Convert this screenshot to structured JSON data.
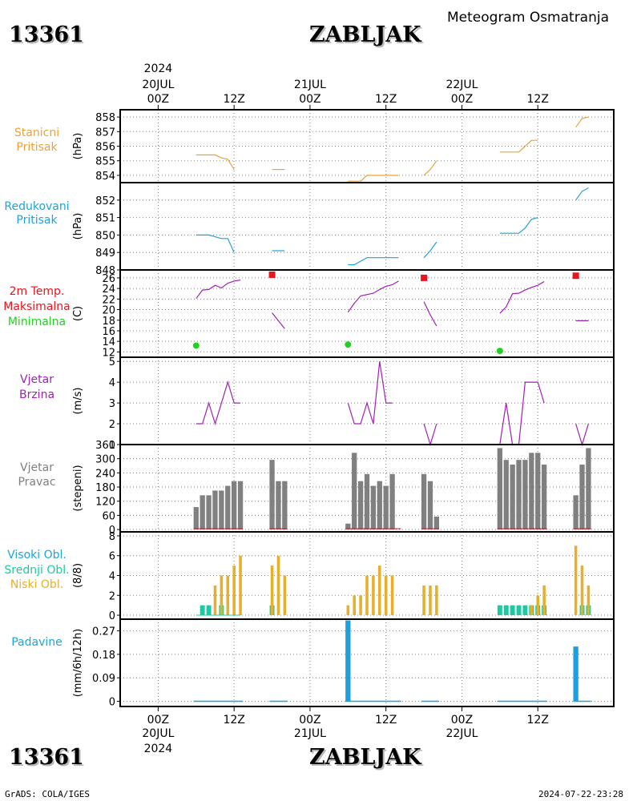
{
  "header": {
    "station_id": "13361",
    "station_name": "ZABLJAK",
    "product_title": "Meteogram Osmatranja"
  },
  "footer": {
    "station_id": "13361",
    "station_name": "ZABLJAK",
    "credit": "GrADS: COLA/IGES",
    "timestamp": "2024-07-22-23:28"
  },
  "time_axis": {
    "top": {
      "ticks": [
        "00Z",
        "12Z",
        "00Z",
        "12Z",
        "00Z",
        "12Z"
      ],
      "dates": [
        "20JUL",
        "21JUL",
        "22JUL"
      ],
      "year": "2024"
    },
    "bottom": {
      "ticks": [
        "00Z",
        "12Z",
        "00Z",
        "12Z",
        "00Z",
        "12Z"
      ],
      "dates": [
        "20JUL",
        "21JUL",
        "22JUL"
      ],
      "year": "2024"
    }
  },
  "colors": {
    "orange": "#e8a33a",
    "blue": "#1fa3d8",
    "red": "#e8141e",
    "green": "#1ed21e",
    "purple": "#a020b4",
    "gray": "#808080",
    "teal": "#1ec8a0",
    "cloud_orange": "#e6af2d",
    "rain_blue": "#1ea0dc"
  },
  "chart_data": [
    {
      "type": "line",
      "panel_label": [
        "Stanicni",
        "Pritisak"
      ],
      "ylabel": "(hPa)",
      "unit_x": "hours from 20JUL 00Z",
      "ylim": [
        853.5,
        858.5
      ],
      "y_ticks": [
        854,
        855,
        856,
        857,
        858
      ],
      "color": "orange",
      "segments": [
        [
          [
            6,
            855.4
          ],
          [
            9,
            855.4
          ],
          [
            10,
            855.2
          ],
          [
            11,
            855.1
          ],
          [
            12,
            854.4
          ]
        ],
        [
          [
            18,
            854.4
          ],
          [
            20,
            854.4
          ]
        ],
        [
          [
            30,
            853.6
          ],
          [
            32,
            853.6
          ],
          [
            33,
            854.0
          ],
          [
            38,
            854.0
          ]
        ],
        [
          [
            42,
            854.0
          ],
          [
            43,
            854.4
          ],
          [
            44,
            855.0
          ]
        ],
        [
          [
            54,
            855.6
          ],
          [
            57,
            855.6
          ],
          [
            58,
            856.0
          ],
          [
            59,
            856.4
          ],
          [
            60,
            856.4
          ]
        ],
        [
          [
            66,
            857.3
          ],
          [
            67,
            857.9
          ],
          [
            68,
            858.0
          ]
        ]
      ]
    },
    {
      "type": "line",
      "panel_label": [
        "Redukovani",
        "Pritisak"
      ],
      "ylabel": "(hPa)",
      "ylim": [
        848.0,
        853.0
      ],
      "y_ticks": [
        848,
        849,
        850,
        851,
        852
      ],
      "color": "blue",
      "segments": [
        [
          [
            6,
            850.0
          ],
          [
            8,
            850.0
          ],
          [
            9,
            849.9
          ],
          [
            10,
            849.8
          ],
          [
            11,
            849.8
          ],
          [
            12,
            849.0
          ]
        ],
        [
          [
            18,
            849.1
          ],
          [
            20,
            849.1
          ]
        ],
        [
          [
            30,
            848.3
          ],
          [
            31,
            848.3
          ],
          [
            32,
            848.5
          ],
          [
            33,
            848.7
          ],
          [
            38,
            848.7
          ]
        ],
        [
          [
            42,
            848.7
          ],
          [
            43,
            849.1
          ],
          [
            44,
            849.6
          ]
        ],
        [
          [
            54,
            850.1
          ],
          [
            57,
            850.1
          ],
          [
            58,
            850.4
          ],
          [
            59,
            850.9
          ],
          [
            60,
            851.0
          ]
        ],
        [
          [
            66,
            852.0
          ],
          [
            67,
            852.5
          ],
          [
            68,
            852.7
          ]
        ]
      ]
    },
    {
      "type": "line",
      "panel_label": [
        "2m Temp.",
        "Maksimalna",
        "Minimalna"
      ],
      "panel_label_colors": [
        "red",
        "red",
        "green"
      ],
      "ylabel": "(C)",
      "ylim": [
        11,
        27.5
      ],
      "y_ticks": [
        12,
        14,
        16,
        18,
        20,
        22,
        24,
        26
      ],
      "color": "purple",
      "segments": [
        [
          [
            6,
            22.1
          ],
          [
            7,
            23.7
          ],
          [
            8,
            23.8
          ],
          [
            9,
            24.6
          ],
          [
            10,
            24.1
          ],
          [
            11,
            25.0
          ],
          [
            12,
            25.4
          ],
          [
            13,
            25.6
          ]
        ],
        [
          [
            18,
            19.4
          ],
          [
            20,
            16.4
          ]
        ],
        [
          [
            30,
            19.5
          ],
          [
            31,
            21.2
          ],
          [
            32,
            22.6
          ],
          [
            34,
            23.1
          ],
          [
            35,
            23.8
          ],
          [
            36,
            24.4
          ],
          [
            37,
            24.7
          ],
          [
            38,
            25.4
          ]
        ],
        [
          [
            42,
            21.5
          ],
          [
            43,
            19.0
          ],
          [
            44,
            16.9
          ]
        ],
        [
          [
            54,
            19.3
          ],
          [
            55,
            20.5
          ],
          [
            56,
            23.0
          ],
          [
            57,
            23.1
          ],
          [
            58,
            23.7
          ],
          [
            59,
            24.2
          ],
          [
            60,
            24.6
          ],
          [
            61,
            25.3
          ]
        ],
        [
          [
            66,
            17.9
          ],
          [
            68,
            17.9
          ]
        ]
      ],
      "maxima": [
        [
          18,
          26.6
        ],
        [
          42,
          26.0
        ],
        [
          66,
          26.4
        ]
      ],
      "minima": [
        [
          6,
          13.2
        ],
        [
          30,
          13.4
        ],
        [
          54,
          12.2
        ]
      ]
    },
    {
      "type": "line",
      "panel_label": [
        "Vjetar",
        "Brzina"
      ],
      "ylabel": "(m/s)",
      "ylim": [
        1,
        5.2
      ],
      "y_ticks": [
        1,
        2,
        3,
        4,
        5
      ],
      "color": "purple",
      "segments": [
        [
          [
            6,
            2
          ],
          [
            7,
            2
          ],
          [
            8,
            3
          ],
          [
            9,
            2
          ],
          [
            10,
            3
          ],
          [
            11,
            4
          ],
          [
            12,
            3
          ],
          [
            13,
            3
          ]
        ],
        [
          [
            18,
            1
          ],
          [
            20,
            1
          ]
        ],
        [
          [
            30,
            3
          ],
          [
            31,
            2
          ],
          [
            32,
            2
          ],
          [
            33,
            3
          ],
          [
            34,
            2
          ],
          [
            35,
            5
          ],
          [
            36,
            3
          ],
          [
            37,
            3
          ]
        ],
        [
          [
            42,
            2
          ],
          [
            43,
            1
          ],
          [
            44,
            2
          ]
        ],
        [
          [
            54,
            1
          ],
          [
            55,
            3
          ],
          [
            56,
            1
          ],
          [
            57,
            1
          ],
          [
            58,
            4
          ],
          [
            59,
            4
          ],
          [
            60,
            4
          ],
          [
            61,
            3
          ]
        ],
        [
          [
            66,
            2
          ],
          [
            67,
            1
          ],
          [
            68,
            2
          ]
        ]
      ]
    },
    {
      "type": "bar",
      "panel_label": [
        "Vjetar",
        "Pravac"
      ],
      "ylabel": "(stepeni)",
      "ylim": [
        -10,
        360
      ],
      "y_ticks": [
        0,
        60,
        120,
        180,
        240,
        300,
        360
      ],
      "color": "gray",
      "x": [
        6,
        7,
        8,
        9,
        10,
        11,
        12,
        13,
        18,
        19,
        20,
        30,
        31,
        32,
        33,
        34,
        35,
        36,
        37,
        38,
        42,
        43,
        44,
        54,
        55,
        56,
        57,
        58,
        59,
        60,
        61,
        66,
        67,
        68
      ],
      "values": [
        95,
        145,
        145,
        165,
        165,
        185,
        205,
        205,
        295,
        205,
        205,
        25,
        325,
        205,
        235,
        185,
        205,
        185,
        235,
        0,
        235,
        205,
        55,
        345,
        295,
        275,
        295,
        295,
        325,
        325,
        275,
        145,
        275,
        345
      ]
    },
    {
      "type": "bar",
      "panel_label": [
        "Visoki Obl.",
        "Srednji Obl.",
        "Niski Obl."
      ],
      "panel_label_colors": [
        "blue",
        "teal",
        "cloud_orange"
      ],
      "ylabel": "(8/8)",
      "ylim": [
        -0.4,
        8.4
      ],
      "y_ticks": [
        0,
        2,
        4,
        6,
        8
      ],
      "series": [
        {
          "name": "Srednji Obl.",
          "color": "teal",
          "x": [
            7,
            8,
            10,
            18,
            54,
            55,
            56,
            57,
            58,
            59,
            60,
            61,
            67,
            68
          ],
          "values": [
            1,
            1,
            1,
            1,
            1,
            1,
            1,
            1,
            1,
            1,
            1,
            1,
            1,
            1
          ]
        },
        {
          "name": "Niski Obl.",
          "color": "cloud_orange",
          "x": [
            9,
            10,
            11,
            12,
            13,
            18,
            19,
            20,
            30,
            31,
            32,
            33,
            34,
            35,
            36,
            37,
            42,
            43,
            44,
            59,
            60,
            61,
            66,
            67,
            68
          ],
          "values": [
            3,
            4,
            4,
            5,
            6,
            5,
            6,
            4,
            1,
            2,
            2,
            4,
            4,
            5,
            4,
            4,
            3,
            3,
            3,
            1,
            2,
            3,
            7,
            5,
            3
          ]
        }
      ]
    },
    {
      "type": "bar",
      "panel_label": [
        "Padavine"
      ],
      "panel_label_colors": [
        "blue"
      ],
      "ylabel": "(mm/6h/12h)",
      "ylim": [
        -0.02,
        0.315
      ],
      "y_ticks": [
        "0",
        "0.09",
        "0.18",
        "0.27"
      ],
      "y_tick_values": [
        0,
        0.09,
        0.18,
        0.27
      ],
      "color": "rain_blue",
      "x": [
        30,
        66
      ],
      "values": [
        0.31,
        0.21
      ],
      "trace_segments": [
        [
          6,
          13
        ],
        [
          18,
          20
        ],
        [
          30,
          38
        ],
        [
          42,
          44
        ],
        [
          54,
          61
        ],
        [
          66,
          68
        ]
      ]
    }
  ]
}
